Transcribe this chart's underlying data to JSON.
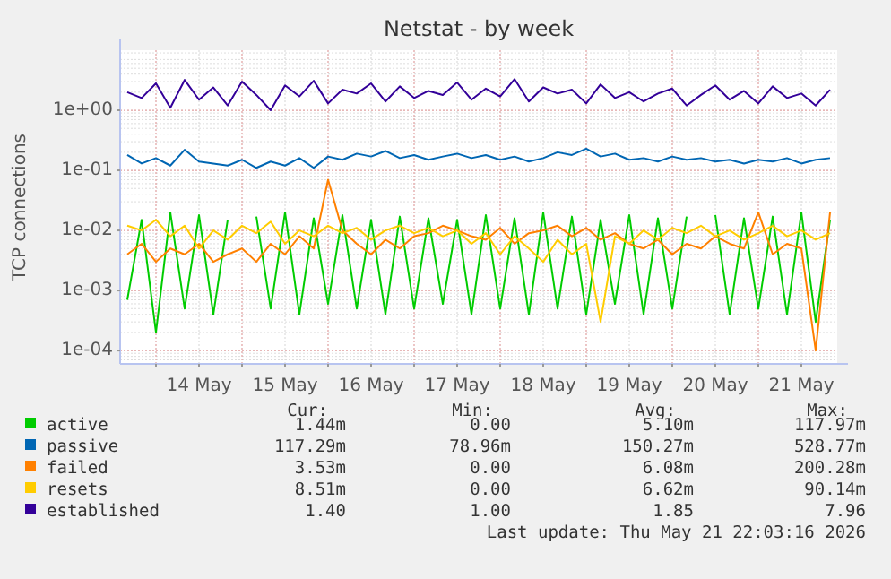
{
  "chart_data": {
    "type": "line",
    "title": "Netstat - by week",
    "ylabel": "TCP connections",
    "log": "y",
    "grid": true,
    "legend": "bottom",
    "marker": "none",
    "line_style": "solid",
    "xlim": [
      "2026-05-13T14:00",
      "2026-05-21T22:00"
    ],
    "xticks": [
      {
        "value": "2026-05-14T00:00",
        "label": null
      },
      {
        "value": "2026-05-14T12:00",
        "label": "14 May"
      },
      {
        "value": "2026-05-15T00:00",
        "label": null
      },
      {
        "value": "2026-05-15T12:00",
        "label": "15 May"
      },
      {
        "value": "2026-05-16T00:00",
        "label": null
      },
      {
        "value": "2026-05-16T12:00",
        "label": "16 May"
      },
      {
        "value": "2026-05-17T00:00",
        "label": null
      },
      {
        "value": "2026-05-17T12:00",
        "label": "17 May"
      },
      {
        "value": "2026-05-18T00:00",
        "label": null
      },
      {
        "value": "2026-05-18T12:00",
        "label": "18 May"
      },
      {
        "value": "2026-05-19T00:00",
        "label": null
      },
      {
        "value": "2026-05-19T12:00",
        "label": "19 May"
      },
      {
        "value": "2026-05-20T00:00",
        "label": null
      },
      {
        "value": "2026-05-20T12:00",
        "label": "20 May"
      },
      {
        "value": "2026-05-21T00:00",
        "label": null
      },
      {
        "value": "2026-05-21T12:00",
        "label": "21 May"
      }
    ],
    "ylim": [
      6e-05,
      10
    ],
    "yticks": [
      {
        "value": 0.0001,
        "label": "1e-04"
      },
      {
        "value": 0.001,
        "label": "1e-03"
      },
      {
        "value": 0.01,
        "label": "1e-02"
      },
      {
        "value": 0.1,
        "label": "1e-01"
      },
      {
        "value": 1,
        "label": "1e+00"
      }
    ],
    "x": [
      "2026-05-13T16:00",
      "2026-05-13T20:00",
      "2026-05-14T00:00",
      "2026-05-14T04:00",
      "2026-05-14T08:00",
      "2026-05-14T12:00",
      "2026-05-14T16:00",
      "2026-05-14T20:00",
      "2026-05-15T00:00",
      "2026-05-15T04:00",
      "2026-05-15T08:00",
      "2026-05-15T12:00",
      "2026-05-15T16:00",
      "2026-05-15T20:00",
      "2026-05-16T00:00",
      "2026-05-16T04:00",
      "2026-05-16T08:00",
      "2026-05-16T12:00",
      "2026-05-16T16:00",
      "2026-05-16T20:00",
      "2026-05-17T00:00",
      "2026-05-17T04:00",
      "2026-05-17T08:00",
      "2026-05-17T12:00",
      "2026-05-17T16:00",
      "2026-05-17T20:00",
      "2026-05-18T00:00",
      "2026-05-18T04:00",
      "2026-05-18T08:00",
      "2026-05-18T12:00",
      "2026-05-18T16:00",
      "2026-05-18T20:00",
      "2026-05-19T00:00",
      "2026-05-19T04:00",
      "2026-05-19T08:00",
      "2026-05-19T12:00",
      "2026-05-19T16:00",
      "2026-05-19T20:00",
      "2026-05-20T00:00",
      "2026-05-20T04:00",
      "2026-05-20T08:00",
      "2026-05-20T12:00",
      "2026-05-20T16:00",
      "2026-05-20T20:00",
      "2026-05-21T00:00",
      "2026-05-21T04:00",
      "2026-05-21T08:00",
      "2026-05-21T12:00",
      "2026-05-21T16:00",
      "2026-05-21T20:00"
    ],
    "series": [
      {
        "name": "active",
        "color": "#00cc00",
        "values": [
          0.0007,
          0.015,
          0.0002,
          0.02,
          0.0005,
          0.018,
          0.0004,
          0.015,
          null,
          0.017,
          0.0005,
          0.02,
          0.0004,
          0.016,
          0.0006,
          0.018,
          0.0005,
          0.015,
          0.0004,
          0.017,
          0.0005,
          0.016,
          0.0006,
          0.015,
          0.0004,
          0.018,
          0.0005,
          0.016,
          0.0004,
          0.02,
          0.0005,
          0.017,
          0.0004,
          0.015,
          0.0006,
          0.018,
          0.0004,
          0.016,
          0.0005,
          0.017,
          null,
          0.018,
          0.0004,
          0.016,
          0.0005,
          0.017,
          0.0004,
          0.02,
          0.0003,
          0.015
        ]
      },
      {
        "name": "passive",
        "color": "#0066b3",
        "values": [
          0.18,
          0.13,
          0.16,
          0.12,
          0.22,
          0.14,
          0.13,
          0.12,
          0.15,
          0.11,
          0.14,
          0.12,
          0.16,
          0.11,
          0.17,
          0.15,
          0.19,
          0.17,
          0.21,
          0.16,
          0.18,
          0.15,
          0.17,
          0.19,
          0.16,
          0.18,
          0.15,
          0.17,
          0.14,
          0.16,
          0.2,
          0.18,
          0.23,
          0.17,
          0.19,
          0.15,
          0.16,
          0.14,
          0.17,
          0.15,
          0.16,
          0.14,
          0.15,
          0.13,
          0.15,
          0.14,
          0.16,
          0.13,
          0.15,
          0.16
        ]
      },
      {
        "name": "failed",
        "color": "#ff8000",
        "values": [
          0.004,
          0.006,
          0.003,
          0.005,
          0.004,
          0.006,
          0.003,
          0.004,
          0.005,
          0.003,
          0.006,
          0.004,
          0.008,
          0.005,
          0.07,
          0.01,
          0.006,
          0.004,
          0.007,
          0.005,
          0.008,
          0.009,
          0.012,
          0.01,
          0.008,
          0.007,
          0.011,
          0.006,
          0.009,
          0.01,
          0.012,
          0.008,
          0.011,
          0.007,
          0.009,
          0.006,
          0.005,
          0.007,
          0.004,
          0.006,
          0.005,
          0.008,
          0.006,
          0.005,
          0.02,
          0.004,
          0.006,
          0.005,
          0.0001,
          0.02
        ]
      },
      {
        "name": "resets",
        "color": "#ffcc00",
        "values": [
          0.012,
          0.01,
          0.015,
          0.008,
          0.012,
          0.005,
          0.01,
          0.007,
          0.012,
          0.009,
          0.014,
          0.006,
          0.01,
          0.008,
          0.012,
          0.009,
          0.011,
          0.007,
          0.01,
          0.012,
          0.009,
          0.011,
          0.008,
          0.01,
          0.006,
          0.009,
          0.004,
          0.008,
          0.005,
          0.003,
          0.007,
          0.004,
          0.006,
          0.0003,
          0.008,
          0.006,
          0.01,
          0.007,
          0.011,
          0.009,
          0.012,
          0.008,
          0.01,
          0.007,
          0.009,
          0.012,
          0.008,
          0.01,
          0.007,
          0.009
        ]
      },
      {
        "name": "established",
        "color": "#330099",
        "values": [
          2.0,
          1.6,
          2.8,
          1.1,
          3.2,
          1.5,
          2.4,
          1.2,
          3.0,
          1.8,
          1.0,
          2.6,
          1.7,
          3.1,
          1.3,
          2.2,
          1.9,
          2.8,
          1.4,
          2.5,
          1.6,
          2.1,
          1.8,
          2.9,
          1.5,
          2.3,
          1.7,
          3.3,
          1.4,
          2.4,
          1.9,
          2.2,
          1.3,
          2.7,
          1.6,
          2.0,
          1.4,
          1.9,
          2.3,
          1.2,
          1.8,
          2.6,
          1.5,
          2.1,
          1.3,
          2.5,
          1.6,
          1.9,
          1.2,
          2.2
        ]
      }
    ],
    "annotations": [
      "Cur:",
      "Min:",
      "Avg:",
      "Max:",
      "1.44m",
      "0.00",
      "5.10m",
      "117.97m",
      "117.29m",
      "78.96m",
      "150.27m",
      "528.77m",
      "3.53m",
      "0.00",
      "6.08m",
      "200.28m",
      "8.51m",
      "0.00",
      "6.62m",
      "90.14m",
      "1.40",
      "1.00",
      "1.85",
      "7.96",
      "Last update: Thu May 21 22:03:16 2026"
    ]
  }
}
